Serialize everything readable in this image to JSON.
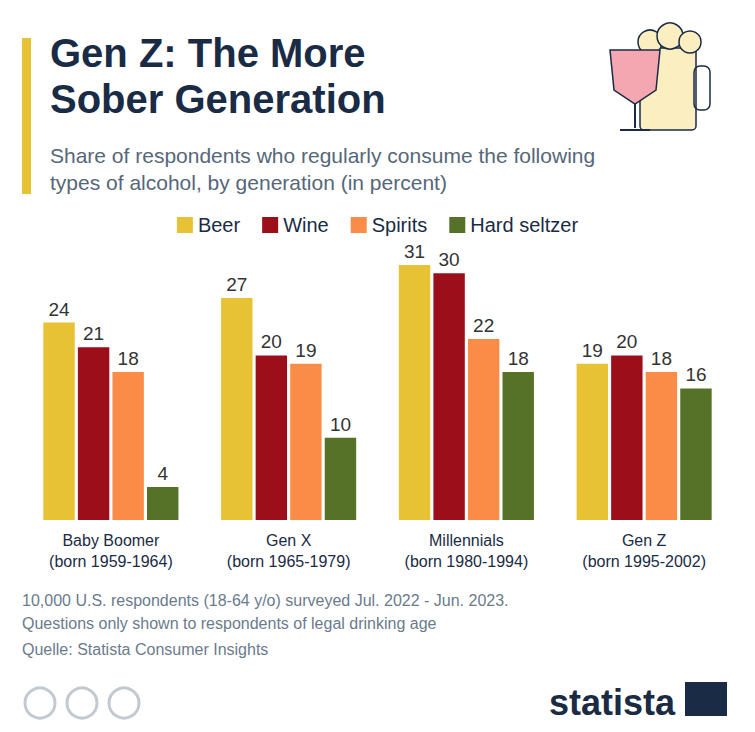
{
  "chart_data": {
    "type": "bar",
    "title": "Gen Z: The More Sober Generation",
    "subtitle": "Share of respondents who regularly consume the following types of alcohol, by generation (in percent)",
    "categories": [
      "Baby Boomer (born 1959-1964)",
      "Gen X (born 1965-1979)",
      "Millennials (born 1980-1994)",
      "Gen Z (born 1995-2002)"
    ],
    "series": [
      {
        "name": "Beer",
        "color": "#e8c235",
        "values": [
          24,
          27,
          31,
          19
        ]
      },
      {
        "name": "Wine",
        "color": "#9b0e1a",
        "values": [
          21,
          20,
          30,
          20
        ]
      },
      {
        "name": "Spirits",
        "color": "#fb8c48",
        "values": [
          18,
          19,
          22,
          18
        ]
      },
      {
        "name": "Hard seltzer",
        "color": "#567228",
        "values": [
          4,
          10,
          18,
          16
        ]
      }
    ],
    "ylim": [
      0,
      31
    ],
    "grid": false,
    "legend": "top",
    "data_labels": true,
    "tick_labels": "x",
    "notes": [
      "10,000 U.S. respondents (18-64 y/o) surveyed Jul. 2022 - Jun. 2023.",
      "Questions only shown to respondents of legal drinking age"
    ],
    "source": "Quelle: Statista Consumer Insights",
    "logo": "statista"
  }
}
